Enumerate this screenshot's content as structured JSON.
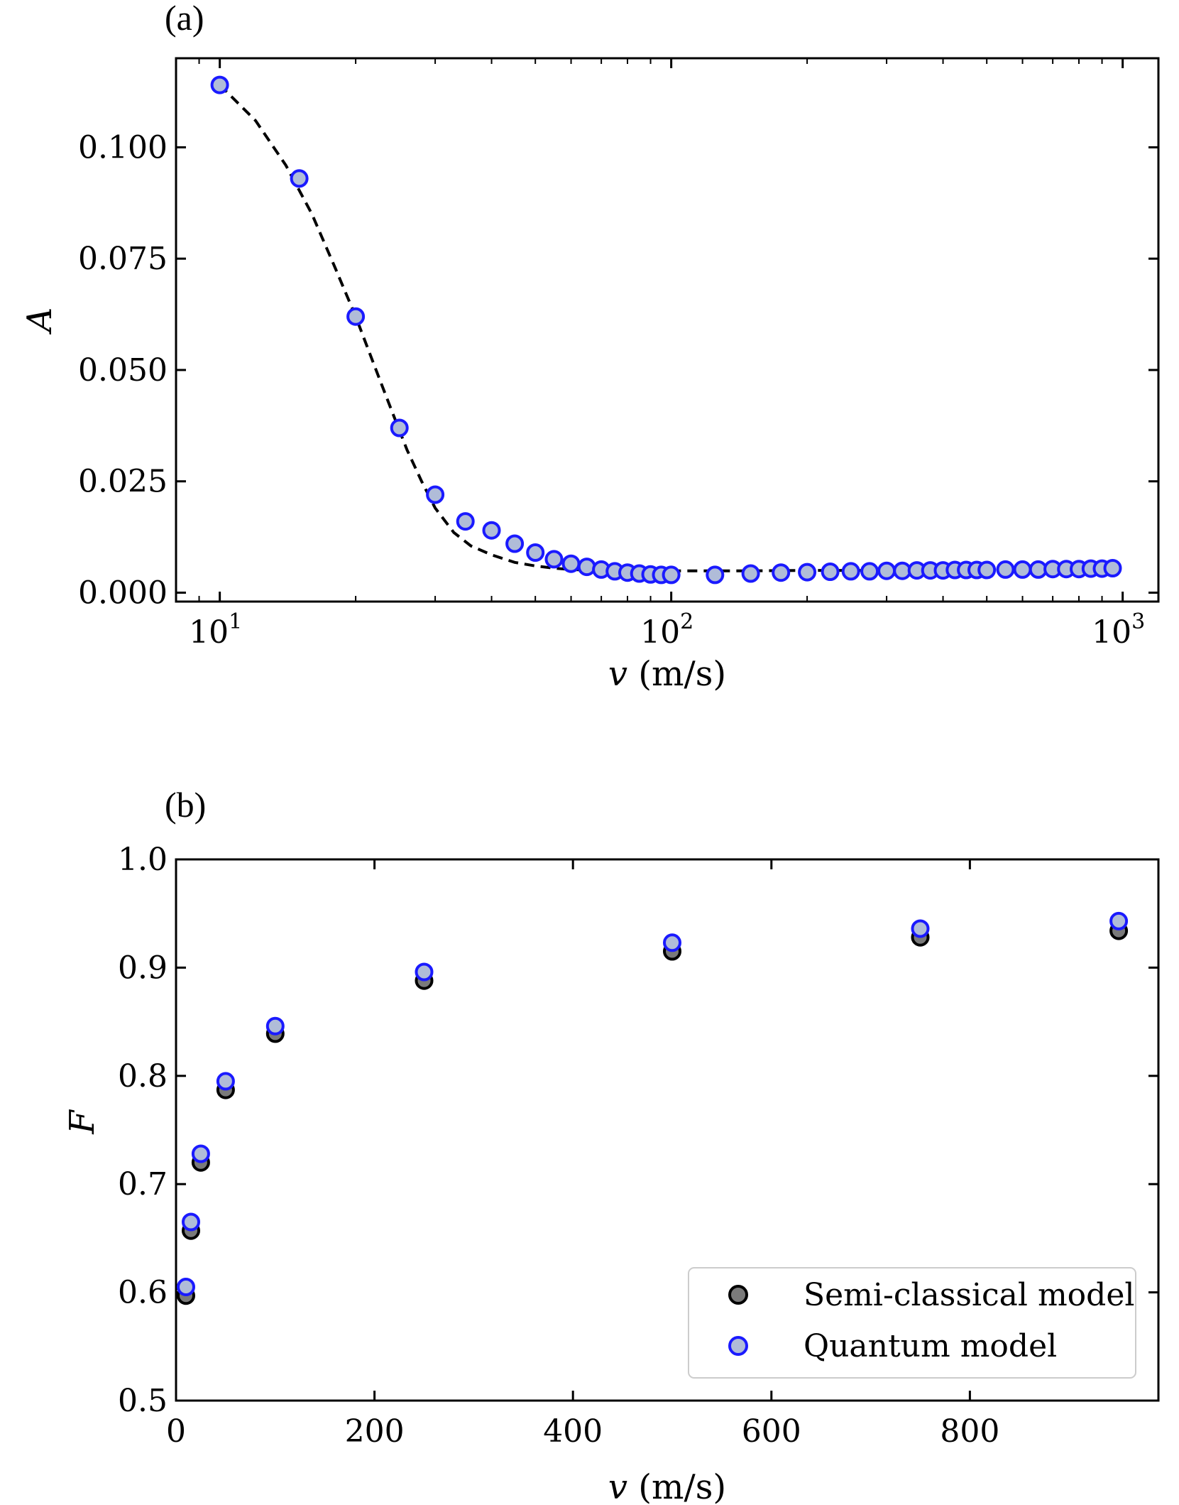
{
  "chart_data": [
    {
      "panel_label": "(a)",
      "type": "scatter",
      "xscale": "log",
      "xlabel_var": "v",
      "xlabel_unit": " (m/s)",
      "ylabel": "A",
      "xlim": [
        8,
        1200
      ],
      "ylim": [
        -0.002,
        0.12
      ],
      "xticks": [
        10,
        100,
        1000
      ],
      "xtick_labels": [
        {
          "base": "10",
          "exp": "1"
        },
        {
          "base": "10",
          "exp": "2"
        },
        {
          "base": "10",
          "exp": "3"
        }
      ],
      "yticks": [
        0,
        0.025,
        0.05,
        0.075,
        0.1
      ],
      "ytick_labels": [
        "0.000",
        "0.025",
        "0.050",
        "0.075",
        "0.100"
      ],
      "series": [
        {
          "style": "dashed-line",
          "color": "#000000",
          "x": [
            10,
            12,
            14,
            16,
            18,
            20,
            22,
            24,
            26,
            28,
            30,
            33,
            36,
            40,
            45,
            50,
            55,
            60,
            70,
            80,
            100,
            120,
            150,
            200,
            300,
            500,
            700,
            950
          ],
          "y": [
            0.114,
            0.106,
            0.096,
            0.085,
            0.073,
            0.062,
            0.051,
            0.041,
            0.032,
            0.025,
            0.019,
            0.0135,
            0.0105,
            0.0085,
            0.0068,
            0.006,
            0.0055,
            0.0052,
            0.005,
            0.0049,
            0.0049,
            0.0049,
            0.0049,
            0.005,
            0.005,
            0.0051,
            0.0052,
            0.0053
          ]
        },
        {
          "style": "markers",
          "color": "#1a1aff",
          "fill": "#b0bcd8",
          "x": [
            10,
            15,
            20,
            25,
            30,
            35,
            40,
            45,
            50,
            55,
            60,
            65,
            70,
            75,
            80,
            85,
            90,
            95,
            100,
            125,
            150,
            175,
            200,
            225,
            250,
            275,
            300,
            325,
            350,
            375,
            400,
            425,
            450,
            475,
            500,
            550,
            600,
            650,
            700,
            750,
            800,
            850,
            900,
            950
          ],
          "y": [
            0.114,
            0.093,
            0.062,
            0.037,
            0.022,
            0.016,
            0.014,
            0.011,
            0.009,
            0.0075,
            0.0065,
            0.0058,
            0.0052,
            0.0048,
            0.0045,
            0.0043,
            0.0041,
            0.004,
            0.004,
            0.004,
            0.0043,
            0.0045,
            0.0046,
            0.0047,
            0.0048,
            0.0048,
            0.0049,
            0.0049,
            0.005,
            0.005,
            0.005,
            0.0051,
            0.0051,
            0.0051,
            0.0051,
            0.0052,
            0.0052,
            0.0052,
            0.0053,
            0.0053,
            0.0053,
            0.0054,
            0.0054,
            0.0055
          ]
        }
      ]
    },
    {
      "panel_label": "(b)",
      "type": "scatter",
      "xscale": "linear",
      "xlabel_var": "v",
      "xlabel_unit": " (m/s)",
      "ylabel": "F",
      "xlim": [
        0,
        990
      ],
      "ylim": [
        0.5,
        1.0
      ],
      "xticks": [
        0,
        200,
        400,
        600,
        800
      ],
      "xtick_labels": [
        "0",
        "200",
        "400",
        "600",
        "800"
      ],
      "yticks": [
        0.5,
        0.6,
        0.7,
        0.8,
        0.9,
        1.0
      ],
      "ytick_labels": [
        "0.5",
        "0.6",
        "0.7",
        "0.8",
        "0.9",
        "1.0"
      ],
      "legend": {
        "placement": "bottom-right"
      },
      "series": [
        {
          "name": "Semi-classical model",
          "style": "markers",
          "color": "#000000",
          "fill": "#7a7a7a",
          "x": [
            10,
            15,
            25,
            50,
            100,
            250,
            500,
            750,
            950
          ],
          "y": [
            0.597,
            0.657,
            0.72,
            0.787,
            0.839,
            0.888,
            0.915,
            0.928,
            0.934
          ]
        },
        {
          "name": "Quantum model",
          "style": "markers",
          "color": "#1a1aff",
          "fill": "#b0bcd8",
          "x": [
            10,
            15,
            25,
            50,
            100,
            250,
            500,
            750,
            950
          ],
          "y": [
            0.605,
            0.665,
            0.728,
            0.795,
            0.846,
            0.896,
            0.923,
            0.936,
            0.943
          ]
        }
      ]
    }
  ]
}
